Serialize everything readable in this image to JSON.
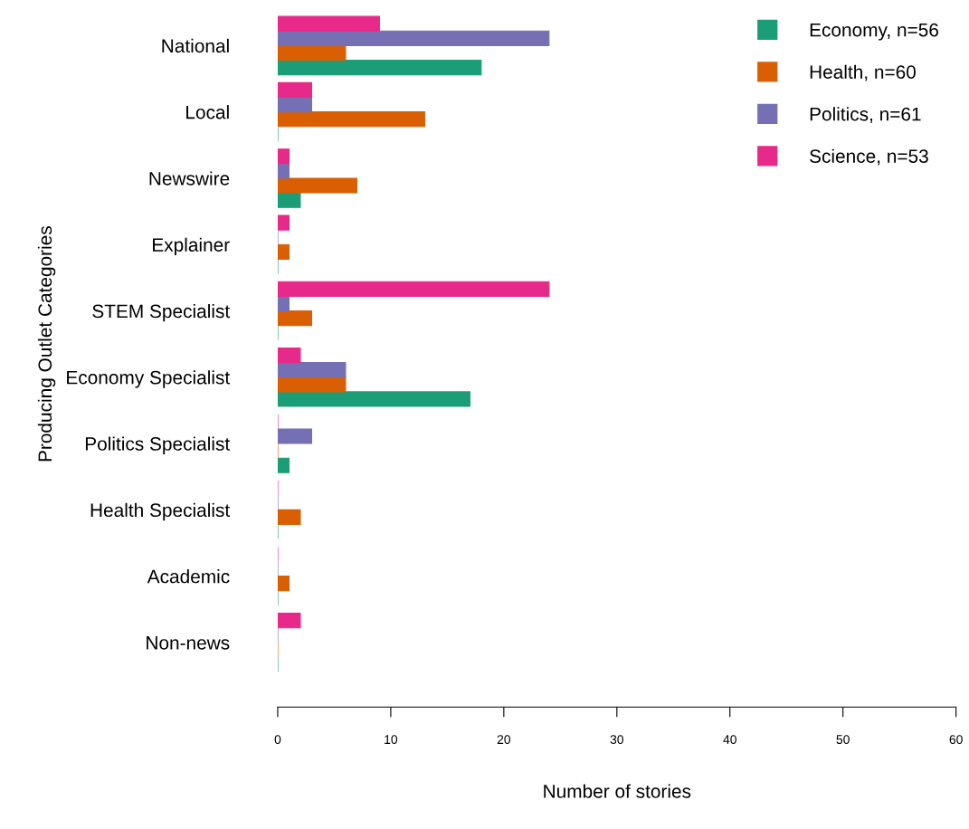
{
  "chart_data": {
    "type": "bar",
    "orientation": "horizontal",
    "xlabel": "Number of stories",
    "ylabel": "Producing Outlet Categories",
    "categories": [
      "National",
      "Local",
      "Newswire",
      "Explainer",
      "STEM Specialist",
      "Economy Specialist",
      "Politics Specialist",
      "Health Specialist",
      "Academic",
      "Non-news"
    ],
    "series": [
      {
        "name": "Economy, n=56",
        "color": "#1b9e77",
        "values": [
          18,
          0,
          2,
          0,
          0,
          17,
          1,
          0,
          0,
          0
        ]
      },
      {
        "name": "Health, n=60",
        "color": "#d95f02",
        "values": [
          6,
          13,
          7,
          1,
          3,
          6,
          0,
          2,
          1,
          0
        ]
      },
      {
        "name": "Politics, n=61",
        "color": "#7570b3",
        "values": [
          24,
          3,
          1,
          0,
          1,
          6,
          3,
          0,
          0,
          0
        ]
      },
      {
        "name": "Science, n=53",
        "color": "#e7298a",
        "values": [
          9,
          3,
          1,
          1,
          24,
          2,
          0,
          0,
          0,
          2
        ]
      }
    ],
    "xlim": [
      0,
      60
    ],
    "xticks": [
      0,
      10,
      20,
      30,
      40,
      50,
      60
    ],
    "grid": false,
    "legend": "top right"
  }
}
